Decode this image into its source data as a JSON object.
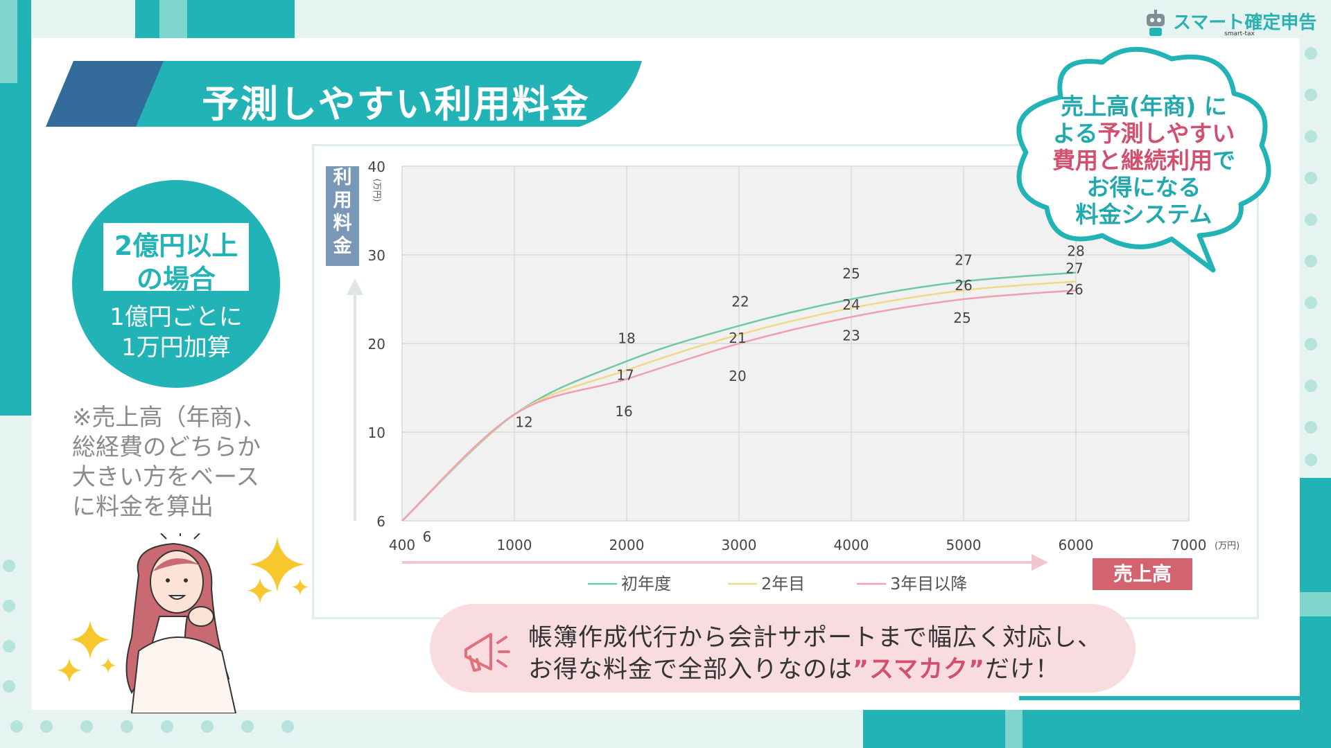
{
  "logo": {
    "name": "スマート確定申告",
    "sub": "smart-tax"
  },
  "title": "予測しやすい利用料金",
  "circle": {
    "box_line1": "2億円以上",
    "box_line2": "の場合",
    "sub_line1": "1億円ごとに",
    "sub_line2": "1万円加算"
  },
  "note": {
    "line1": "※売上高（年商)、",
    "line2": "総経費のどちらか",
    "line3": "大きい方をベース",
    "line4": "に料金を算出"
  },
  "bubble": {
    "line1": "売上高(年商) に",
    "line2_pre": "よる",
    "line2_pink": "予測しやすい",
    "line3_pink": "費用と継続利用",
    "line3_post": "で",
    "line4": "お得になる",
    "line5": "料金システム"
  },
  "banner": {
    "line1": "帳簿作成代行から会計サポートまで幅広く対応し、",
    "line2_pre": "お得な料金で全部入りなのは",
    "line2_highlight": "”スマカク”",
    "line2_post": "だけ！"
  },
  "colors": {
    "teal": "#21b3b6",
    "navy": "#336b9a",
    "pink": "#d3646f",
    "series1": "#6fc9a1",
    "series2": "#f2d889",
    "series3": "#ef9fb0"
  },
  "icons": [
    "megaphone-icon",
    "sparkle-icon",
    "robot-logo-icon",
    "woman-illustration"
  ],
  "chart_data": {
    "type": "line",
    "ylabel": "利用料金",
    "yunit": "(万円)",
    "xlabel": "売上高",
    "xunit": "(万円)",
    "x_ticks": [
      "400",
      "1000",
      "2000",
      "3000",
      "4000",
      "5000",
      "6000",
      "7000"
    ],
    "y_ticks": [
      "6",
      "10",
      "20",
      "30",
      "40"
    ],
    "x": [
      400,
      1000,
      2000,
      3000,
      4000,
      5000,
      6000
    ],
    "series": [
      {
        "name": "初年度",
        "values": [
          6,
          12,
          18,
          22,
          25,
          27,
          28
        ]
      },
      {
        "name": "2年目",
        "values": [
          6,
          12,
          17,
          21,
          24,
          26,
          27
        ]
      },
      {
        "name": "3年目以降",
        "values": [
          6,
          12,
          16,
          20,
          23,
          25,
          26
        ]
      }
    ],
    "data_labels": [
      {
        "x": 400,
        "text": "6"
      },
      {
        "x": 1000,
        "text": "12"
      },
      {
        "x": 2000,
        "texts": [
          "18",
          "17",
          "16"
        ]
      },
      {
        "x": 3000,
        "texts": [
          "22",
          "21",
          "20"
        ]
      },
      {
        "x": 4000,
        "texts": [
          "25",
          "24",
          "23"
        ]
      },
      {
        "x": 5000,
        "texts": [
          "27",
          "26",
          "25"
        ]
      },
      {
        "x": 6000,
        "texts": [
          "28",
          "27",
          "26"
        ]
      }
    ],
    "grid": true,
    "legend": "bottom"
  }
}
